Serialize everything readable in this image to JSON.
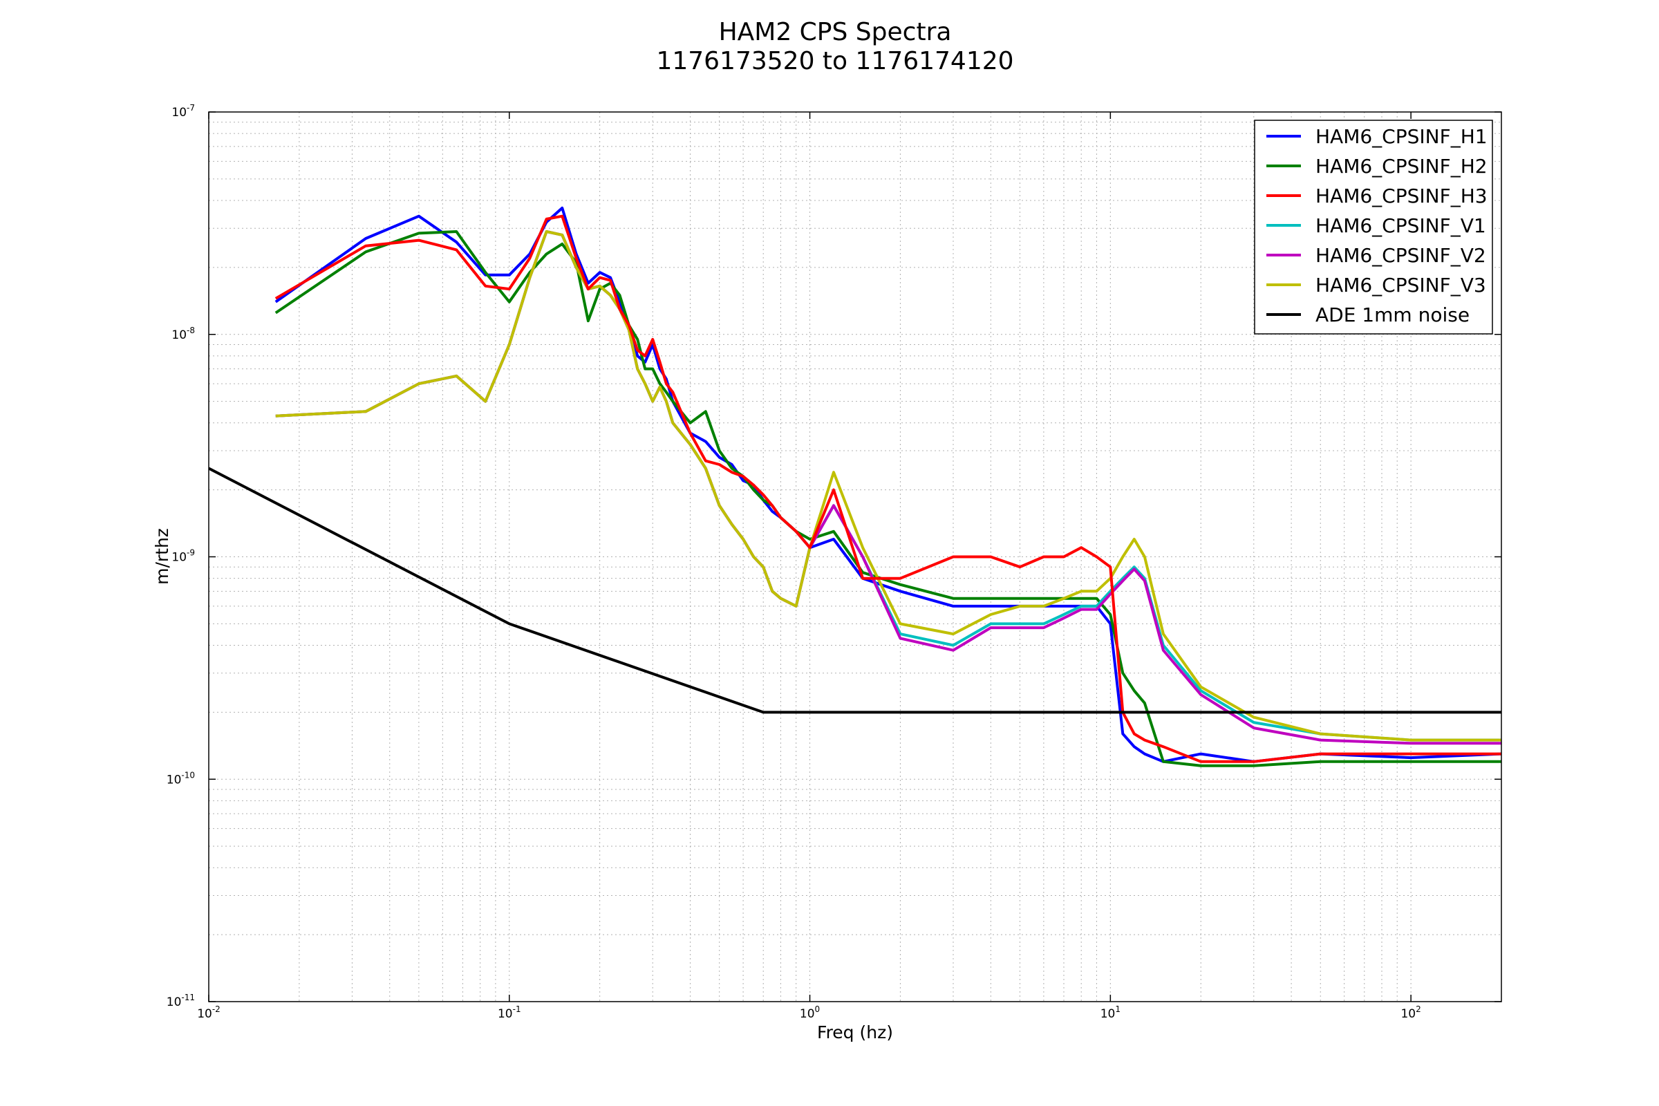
{
  "chart_data": {
    "type": "line",
    "title_lines": [
      "HAM2 CPS Spectra",
      "1176173520 to 1176174120"
    ],
    "xlabel": "Freq (hz)",
    "ylabel": "m/rthz",
    "x_scale": "log",
    "y_scale": "log",
    "xlim": [
      0.01,
      200
    ],
    "ylim": [
      1e-11,
      1e-07
    ],
    "grid": "on",
    "legend_position": "top-right",
    "x_ticks": [
      {
        "value": 0.01,
        "base": "10",
        "exp": "-2"
      },
      {
        "value": 0.1,
        "base": "10",
        "exp": "-1"
      },
      {
        "value": 1,
        "base": "10",
        "exp": "0"
      },
      {
        "value": 10,
        "base": "10",
        "exp": "1"
      },
      {
        "value": 100,
        "base": "10",
        "exp": "2"
      }
    ],
    "y_ticks": [
      {
        "value": 1e-11,
        "base": "10",
        "exp": "-11"
      },
      {
        "value": 1e-10,
        "base": "10",
        "exp": "-10"
      },
      {
        "value": 1e-09,
        "base": "10",
        "exp": "-9"
      },
      {
        "value": 1e-08,
        "base": "10",
        "exp": "-8"
      },
      {
        "value": 1e-07,
        "base": "10",
        "exp": "-7"
      }
    ],
    "series": [
      {
        "name": "HAM6_CPSINF_H1",
        "color": "#0000ff",
        "draw_order": 0,
        "x": [
          0.0167,
          0.0333,
          0.05,
          0.0667,
          0.0833,
          0.1,
          0.117,
          0.133,
          0.15,
          0.167,
          0.183,
          0.2,
          0.217,
          0.233,
          0.25,
          0.267,
          0.283,
          0.3,
          0.317,
          0.333,
          0.35,
          0.4,
          0.45,
          0.5,
          0.55,
          0.6,
          0.65,
          0.7,
          0.75,
          0.8,
          0.9,
          1.0,
          1.2,
          1.5,
          2.0,
          3.0,
          4.0,
          5.0,
          6.0,
          7.0,
          8.0,
          9.0,
          10.0,
          11.0,
          12.0,
          13.0,
          15.0,
          20.0,
          30.0,
          50.0,
          100.0,
          200.0
        ],
        "y": [
          1.4e-08,
          2.7e-08,
          3.4e-08,
          2.6e-08,
          1.85e-08,
          1.85e-08,
          2.3e-08,
          3.2e-08,
          3.7e-08,
          2.3e-08,
          1.7e-08,
          1.9e-08,
          1.8e-08,
          1.4e-08,
          1.1e-08,
          8e-09,
          7.5e-09,
          9e-09,
          7e-09,
          6.3e-09,
          5e-09,
          3.6e-09,
          3.3e-09,
          2.8e-09,
          2.6e-09,
          2.2e-09,
          2.1e-09,
          1.8e-09,
          1.6e-09,
          1.5e-09,
          1.3e-09,
          1.1e-09,
          1.2e-09,
          8e-10,
          7e-10,
          6e-10,
          6e-10,
          6e-10,
          6e-10,
          6e-10,
          6e-10,
          6e-10,
          5e-10,
          1.6e-10,
          1.4e-10,
          1.3e-10,
          1.2e-10,
          1.3e-10,
          1.2e-10,
          1.3e-10,
          1.25e-10,
          1.3e-10
        ]
      },
      {
        "name": "HAM6_CPSINF_H2",
        "color": "#008000",
        "draw_order": 1,
        "x": [
          0.0167,
          0.0333,
          0.05,
          0.0667,
          0.0833,
          0.1,
          0.117,
          0.133,
          0.15,
          0.167,
          0.183,
          0.2,
          0.217,
          0.233,
          0.25,
          0.267,
          0.283,
          0.3,
          0.317,
          0.333,
          0.35,
          0.4,
          0.45,
          0.5,
          0.55,
          0.6,
          0.65,
          0.7,
          0.75,
          0.8,
          0.9,
          1.0,
          1.2,
          1.5,
          2.0,
          3.0,
          4.0,
          5.0,
          6.0,
          7.0,
          8.0,
          9.0,
          10.0,
          11.0,
          12.0,
          13.0,
          15.0,
          20.0,
          30.0,
          50.0,
          100.0,
          200.0
        ],
        "y": [
          1.25e-08,
          2.35e-08,
          2.85e-08,
          2.9e-08,
          1.9e-08,
          1.4e-08,
          1.9e-08,
          2.3e-08,
          2.55e-08,
          2.1e-08,
          1.15e-08,
          1.6e-08,
          1.7e-08,
          1.5e-08,
          1.1e-08,
          9.5e-09,
          7e-09,
          7e-09,
          6e-09,
          5.5e-09,
          5e-09,
          4e-09,
          4.5e-09,
          3e-09,
          2.5e-09,
          2.3e-09,
          2e-09,
          1.8e-09,
          1.7e-09,
          1.5e-09,
          1.3e-09,
          1.2e-09,
          1.3e-09,
          8.5e-10,
          7.5e-10,
          6.5e-10,
          6.5e-10,
          6.5e-10,
          6.5e-10,
          6.5e-10,
          6.5e-10,
          6.5e-10,
          5.5e-10,
          3e-10,
          2.5e-10,
          2.2e-10,
          1.2e-10,
          1.15e-10,
          1.15e-10,
          1.2e-10,
          1.2e-10,
          1.2e-10
        ]
      },
      {
        "name": "HAM6_CPSINF_H3",
        "color": "#ff0000",
        "draw_order": 5,
        "x": [
          0.0167,
          0.0333,
          0.05,
          0.0667,
          0.0833,
          0.1,
          0.117,
          0.133,
          0.15,
          0.167,
          0.183,
          0.2,
          0.217,
          0.233,
          0.25,
          0.267,
          0.283,
          0.3,
          0.317,
          0.333,
          0.35,
          0.4,
          0.45,
          0.5,
          0.55,
          0.6,
          0.65,
          0.7,
          0.75,
          0.8,
          0.9,
          1.0,
          1.2,
          1.5,
          2.0,
          3.0,
          4.0,
          5.0,
          6.0,
          7.0,
          8.0,
          9.0,
          10.0,
          11.0,
          12.0,
          13.0,
          15.0,
          20.0,
          30.0,
          50.0,
          100.0,
          200.0
        ],
        "y": [
          1.45e-08,
          2.5e-08,
          2.65e-08,
          2.4e-08,
          1.65e-08,
          1.6e-08,
          2.2e-08,
          3.3e-08,
          3.4e-08,
          2.2e-08,
          1.6e-08,
          1.8e-08,
          1.75e-08,
          1.3e-08,
          1.1e-08,
          8.5e-09,
          8e-09,
          9.5e-09,
          7.5e-09,
          6e-09,
          5.5e-09,
          3.6e-09,
          2.7e-09,
          2.6e-09,
          2.4e-09,
          2.3e-09,
          2.1e-09,
          1.9e-09,
          1.7e-09,
          1.5e-09,
          1.3e-09,
          1.1e-09,
          2e-09,
          8e-10,
          8e-10,
          1e-09,
          1e-09,
          9e-10,
          1e-09,
          1e-09,
          1.1e-09,
          1e-09,
          9e-10,
          2e-10,
          1.6e-10,
          1.5e-10,
          1.4e-10,
          1.2e-10,
          1.2e-10,
          1.3e-10,
          1.3e-10,
          1.3e-10
        ]
      },
      {
        "name": "HAM6_CPSINF_V1",
        "color": "#00bfbf",
        "draw_order": 2,
        "x": [
          0.0167,
          0.0333,
          0.05,
          0.0667,
          0.0833,
          0.1,
          0.117,
          0.133,
          0.15,
          0.167,
          0.183,
          0.2,
          0.217,
          0.233,
          0.25,
          0.267,
          0.283,
          0.3,
          0.317,
          0.333,
          0.35,
          0.4,
          0.45,
          0.5,
          0.55,
          0.6,
          0.65,
          0.7,
          0.75,
          0.8,
          0.9,
          1.0,
          1.2,
          1.5,
          2.0,
          3.0,
          4.0,
          5.0,
          6.0,
          7.0,
          8.0,
          9.0,
          10.0,
          11.0,
          12.0,
          13.0,
          15.0,
          20.0,
          30.0,
          50.0,
          100.0,
          200.0
        ],
        "y": [
          4.3e-09,
          4.5e-09,
          6e-09,
          6.5e-09,
          5e-09,
          9e-09,
          1.8e-08,
          2.9e-08,
          2.8e-08,
          2e-08,
          1.6e-08,
          1.65e-08,
          1.5e-08,
          1.3e-08,
          1.05e-08,
          7e-09,
          6e-09,
          5e-09,
          5.8e-09,
          5e-09,
          4e-09,
          3.2e-09,
          2.5e-09,
          1.7e-09,
          1.4e-09,
          1.2e-09,
          1e-09,
          9e-10,
          7e-10,
          6.5e-10,
          6e-10,
          1.1e-09,
          1.7e-09,
          1e-09,
          4.5e-10,
          4e-10,
          5e-10,
          5e-10,
          5e-10,
          5.5e-10,
          6e-10,
          6e-10,
          7e-10,
          8e-10,
          9e-10,
          8e-10,
          4e-10,
          2.5e-10,
          1.8e-10,
          1.6e-10,
          1.5e-10,
          1.5e-10
        ]
      },
      {
        "name": "HAM6_CPSINF_V2",
        "color": "#bf00bf",
        "draw_order": 3,
        "x": [
          0.0167,
          0.0333,
          0.05,
          0.0667,
          0.0833,
          0.1,
          0.117,
          0.133,
          0.15,
          0.167,
          0.183,
          0.2,
          0.217,
          0.233,
          0.25,
          0.267,
          0.283,
          0.3,
          0.317,
          0.333,
          0.35,
          0.4,
          0.45,
          0.5,
          0.55,
          0.6,
          0.65,
          0.7,
          0.75,
          0.8,
          0.9,
          1.0,
          1.2,
          1.5,
          2.0,
          3.0,
          4.0,
          5.0,
          6.0,
          7.0,
          8.0,
          9.0,
          10.0,
          11.0,
          12.0,
          13.0,
          15.0,
          20.0,
          30.0,
          50.0,
          100.0,
          200.0
        ],
        "y": [
          4.3e-09,
          4.5e-09,
          6e-09,
          6.5e-09,
          5e-09,
          9e-09,
          1.8e-08,
          2.9e-08,
          2.8e-08,
          2e-08,
          1.6e-08,
          1.65e-08,
          1.5e-08,
          1.3e-08,
          1.05e-08,
          7e-09,
          6e-09,
          5e-09,
          5.8e-09,
          5e-09,
          4e-09,
          3.2e-09,
          2.5e-09,
          1.7e-09,
          1.4e-09,
          1.2e-09,
          1e-09,
          9e-10,
          7e-10,
          6.5e-10,
          6e-10,
          1.1e-09,
          1.7e-09,
          1e-09,
          4.3e-10,
          3.8e-10,
          4.8e-10,
          4.8e-10,
          4.8e-10,
          5.3e-10,
          5.8e-10,
          5.8e-10,
          6.8e-10,
          7.8e-10,
          8.8e-10,
          7.8e-10,
          3.8e-10,
          2.4e-10,
          1.7e-10,
          1.5e-10,
          1.45e-10,
          1.45e-10
        ]
      },
      {
        "name": "HAM6_CPSINF_V3",
        "color": "#bfbf00",
        "draw_order": 4,
        "x": [
          0.0167,
          0.0333,
          0.05,
          0.0667,
          0.0833,
          0.1,
          0.117,
          0.133,
          0.15,
          0.167,
          0.183,
          0.2,
          0.217,
          0.233,
          0.25,
          0.267,
          0.283,
          0.3,
          0.317,
          0.333,
          0.35,
          0.4,
          0.45,
          0.5,
          0.55,
          0.6,
          0.65,
          0.7,
          0.75,
          0.8,
          0.9,
          1.0,
          1.2,
          1.5,
          2.0,
          3.0,
          4.0,
          5.0,
          6.0,
          7.0,
          8.0,
          9.0,
          10.0,
          11.0,
          12.0,
          13.0,
          15.0,
          20.0,
          30.0,
          50.0,
          100.0,
          200.0
        ],
        "y": [
          4.3e-09,
          4.5e-09,
          6e-09,
          6.5e-09,
          5e-09,
          9e-09,
          1.8e-08,
          2.9e-08,
          2.8e-08,
          2e-08,
          1.6e-08,
          1.65e-08,
          1.5e-08,
          1.3e-08,
          1.05e-08,
          7e-09,
          6e-09,
          5e-09,
          5.8e-09,
          5e-09,
          4e-09,
          3.2e-09,
          2.5e-09,
          1.7e-09,
          1.4e-09,
          1.2e-09,
          1e-09,
          9e-10,
          7e-10,
          6.5e-10,
          6e-10,
          1.1e-09,
          2.4e-09,
          1.1e-09,
          5e-10,
          4.5e-10,
          5.5e-10,
          6e-10,
          6e-10,
          6.5e-10,
          7e-10,
          7e-10,
          8e-10,
          1e-09,
          1.2e-09,
          1e-09,
          4.5e-10,
          2.6e-10,
          1.9e-10,
          1.6e-10,
          1.5e-10,
          1.5e-10
        ]
      },
      {
        "name": "ADE 1mm noise",
        "color": "#000000",
        "draw_order": 6,
        "x": [
          0.01,
          0.1,
          0.7,
          200
        ],
        "y": [
          2.5e-09,
          5e-10,
          2e-10,
          2e-10
        ]
      }
    ]
  }
}
